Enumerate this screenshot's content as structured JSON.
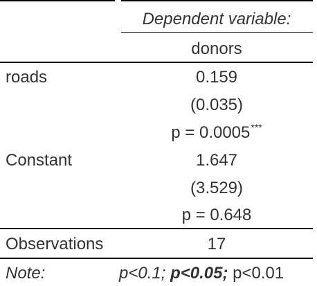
{
  "table": {
    "header": {
      "dependent_variable_label": "Dependent variable:",
      "dependent_variable_name": "donors"
    },
    "rows": [
      {
        "variable": "roads",
        "coefficient": "0.159",
        "std_error": "(0.035)",
        "p_value": "p = 0.0005",
        "significance_stars": "***"
      },
      {
        "variable": "Constant",
        "coefficient": "1.647",
        "std_error": "(3.529)",
        "p_value": "p = 0.648",
        "significance_stars": ""
      }
    ],
    "observations": {
      "label": "Observations",
      "value": "17"
    },
    "note": {
      "label": "Note:",
      "p1": "p<0.1;",
      "p2": "p<0.05;",
      "p3": "p<0.01"
    }
  }
}
